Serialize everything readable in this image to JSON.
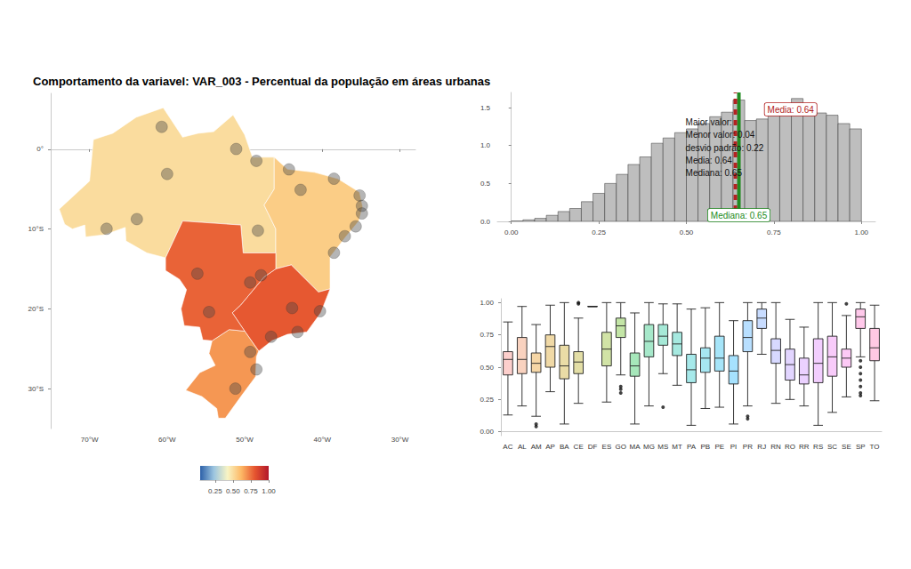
{
  "chart_data": [
    {
      "type": "map",
      "title": "Comportamento da variavel: VAR_003 - Percentual da população em áreas urbanas",
      "xlim": [
        -75,
        -28
      ],
      "xticks": [
        {
          "value": -70,
          "label": "70°W"
        },
        {
          "value": -60,
          "label": "60°W"
        },
        {
          "value": -50,
          "label": "50°W"
        },
        {
          "value": -40,
          "label": "40°W"
        },
        {
          "value": -30,
          "label": "30°W"
        }
      ],
      "ylim": [
        -35,
        7
      ],
      "yticks": [
        {
          "value": 0,
          "label": "0°"
        },
        {
          "value": -10,
          "label": "10°S"
        },
        {
          "value": -20,
          "label": "20°S"
        },
        {
          "value": -30,
          "label": "30°S"
        }
      ],
      "grid": false,
      "regions": [
        {
          "value": 0.5,
          "polygon": [
            [
              -73.9,
              -7.5
            ],
            [
              -70,
              -4
            ],
            [
              -69.5,
              1.2
            ],
            [
              -67,
              2
            ],
            [
              -64,
              4
            ],
            [
              -60.5,
              5.2
            ],
            [
              -58,
              1.5
            ],
            [
              -56,
              2
            ],
            [
              -54,
              2.2
            ],
            [
              -51.5,
              4.3
            ],
            [
              -50,
              1.8
            ],
            [
              -49,
              -1
            ],
            [
              -46.2,
              -1
            ],
            [
              -46.2,
              -5
            ],
            [
              -47.5,
              -7
            ],
            [
              -46,
              -10
            ],
            [
              -46,
              -13
            ],
            [
              -50.2,
              -13
            ],
            [
              -50.5,
              -9.5
            ],
            [
              -58,
              -9
            ],
            [
              -60.2,
              -13.6
            ],
            [
              -62.6,
              -13
            ],
            [
              -65.3,
              -11.5
            ],
            [
              -65.4,
              -9.8
            ],
            [
              -68,
              -10.7
            ],
            [
              -70.5,
              -11
            ],
            [
              -70.6,
              -9.5
            ],
            [
              -72.2,
              -10
            ],
            [
              -73.2,
              -9.4
            ]
          ]
        },
        {
          "value": 0.55,
          "polygon": [
            [
              -46.2,
              -1
            ],
            [
              -44.5,
              -2.5
            ],
            [
              -41,
              -2.9
            ],
            [
              -38,
              -3.7
            ],
            [
              -35.2,
              -5.4
            ],
            [
              -34.8,
              -7.2
            ],
            [
              -35.3,
              -9
            ],
            [
              -37,
              -11
            ],
            [
              -39,
              -13.5
            ],
            [
              -39,
              -17.5
            ],
            [
              -40.5,
              -17.9
            ],
            [
              -44,
              -14.5
            ],
            [
              -46,
              -15
            ],
            [
              -46,
              -13
            ],
            [
              -46,
              -10
            ],
            [
              -47.5,
              -7
            ],
            [
              -46.2,
              -5
            ]
          ]
        },
        {
          "value": 0.8,
          "polygon": [
            [
              -39,
              -17.5
            ],
            [
              -40.2,
              -20.5
            ],
            [
              -42,
              -22.9
            ],
            [
              -44.5,
              -23.2
            ],
            [
              -46.5,
              -24
            ],
            [
              -48.2,
              -25.3
            ],
            [
              -50,
              -22.8
            ],
            [
              -51.6,
              -20.5
            ],
            [
              -50.5,
              -19.5
            ],
            [
              -47.5,
              -16
            ],
            [
              -46,
              -15
            ],
            [
              -44,
              -14.5
            ],
            [
              -40.5,
              -17.9
            ]
          ]
        },
        {
          "value": 0.68,
          "polygon": [
            [
              -48.2,
              -25.3
            ],
            [
              -48.5,
              -26
            ],
            [
              -48.6,
              -28.5
            ],
            [
              -50.5,
              -31
            ],
            [
              -52.5,
              -33.7
            ],
            [
              -53.4,
              -33.7
            ],
            [
              -53.6,
              -32.5
            ],
            [
              -55.5,
              -31
            ],
            [
              -57.6,
              -30.2
            ],
            [
              -55.8,
              -28
            ],
            [
              -53.8,
              -27.1
            ],
            [
              -54.6,
              -25.6
            ],
            [
              -54.2,
              -24
            ],
            [
              -52,
              -22.6
            ],
            [
              -50,
              -22.8
            ]
          ]
        },
        {
          "value": 0.78,
          "polygon": [
            [
              -50.2,
              -13
            ],
            [
              -46,
              -13
            ],
            [
              -46,
              -15
            ],
            [
              -47.5,
              -16
            ],
            [
              -50.5,
              -19.5
            ],
            [
              -51.6,
              -20.5
            ],
            [
              -50,
              -22.8
            ],
            [
              -52,
              -22.6
            ],
            [
              -54.2,
              -24
            ],
            [
              -55.4,
              -23.9
            ],
            [
              -55.8,
              -22.3
            ],
            [
              -57.8,
              -22.1
            ],
            [
              -58.2,
              -20
            ],
            [
              -57.5,
              -17.6
            ],
            [
              -58.4,
              -16.3
            ],
            [
              -60.2,
              -15.2
            ],
            [
              -60.2,
              -13.6
            ],
            [
              -58,
              -9
            ],
            [
              -50.5,
              -9.5
            ]
          ]
        }
      ],
      "points": [
        [
          -67.8,
          -9.97
        ],
        [
          -63.9,
          -8.76
        ],
        [
          -60,
          -3.1
        ],
        [
          -60.7,
          2.8
        ],
        [
          -51.1,
          0.03
        ],
        [
          -48.5,
          -1.46
        ],
        [
          -48.3,
          -10.2
        ],
        [
          -44.3,
          -2.53
        ],
        [
          -42.8,
          -5.09
        ],
        [
          -38.5,
          -3.7
        ],
        [
          -35.2,
          -5.8
        ],
        [
          -34.9,
          -7.1
        ],
        [
          -34.9,
          -8.05
        ],
        [
          -35.7,
          -9.67
        ],
        [
          -37.1,
          -10.9
        ],
        [
          -38.5,
          -12.97
        ],
        [
          -47.9,
          -15.8
        ],
        [
          -49.3,
          -16.7
        ],
        [
          -56.1,
          -15.6
        ],
        [
          -54.6,
          -20.4
        ],
        [
          -43.9,
          -19.9
        ],
        [
          -40.3,
          -20.3
        ],
        [
          -43.2,
          -22.9
        ],
        [
          -46.6,
          -23.5
        ],
        [
          -49.3,
          -25.4
        ],
        [
          -48.5,
          -27.6
        ],
        [
          -51.2,
          -30
        ]
      ],
      "colorbar": {
        "range": [
          0.04,
          1.0
        ],
        "ticks": [
          0.25,
          {
            "value": 0.5,
            "label": "0.50"
          },
          0.75,
          {
            "value": 1.0,
            "label": "1.00"
          }
        ],
        "colors": [
          "#2c60a8",
          "#9cc5e0",
          "#f8f4c4",
          "#fdb865",
          "#e5542f",
          "#b2182b"
        ]
      }
    },
    {
      "type": "histogram",
      "bins": [
        0,
        0.0333,
        0.0667,
        0.1,
        0.1333,
        0.1667,
        0.2,
        0.2333,
        0.2667,
        0.3,
        0.3333,
        0.3667,
        0.4,
        0.4333,
        0.4667,
        0.5,
        0.5333,
        0.5667,
        0.6,
        0.6333,
        0.6667,
        0.7,
        0.7333,
        0.7667,
        0.8,
        0.8333,
        0.8667,
        0.9,
        0.9333,
        0.9667,
        1
      ],
      "values": [
        0.005,
        0.02,
        0.04,
        0.08,
        0.13,
        0.17,
        0.26,
        0.37,
        0.5,
        0.62,
        0.75,
        0.85,
        1.03,
        1.1,
        1.17,
        1.22,
        1.29,
        1.38,
        1.44,
        1.6,
        1.33,
        1.35,
        1.42,
        1.53,
        1.62,
        1.5,
        1.43,
        1.4,
        1.29,
        1.22
      ],
      "color": "#bebebe",
      "xlim": [
        -0.04,
        1.04
      ],
      "xticks": [
        {
          "value": 0,
          "label": "0.00"
        },
        0.25,
        {
          "value": 0.5,
          "label": "0.50"
        },
        0.75,
        {
          "value": 1,
          "label": "1.00"
        }
      ],
      "ylim": [
        0,
        1.7
      ],
      "yticks": [
        {
          "value": 0,
          "label": "0.0"
        },
        {
          "value": 0.5,
          "label": "0.5"
        },
        {
          "value": 1,
          "label": "1.0"
        },
        {
          "value": 1.5,
          "label": "1.5"
        }
      ],
      "grid": false,
      "mean": {
        "value": 0.64,
        "label": "Media: 0.64",
        "color": "#b22222"
      },
      "median": {
        "value": 0.65,
        "label": "Mediana: 0.65",
        "color": "#228b22"
      },
      "stats_text": [
        "Maior valor:",
        "Menor valor: 0.04",
        "desvio padrão: 0.22",
        "Media: 0.64",
        "Mediana: 0.65"
      ]
    },
    {
      "type": "boxplot",
      "categories": [
        "AC",
        "AL",
        "AM",
        "AP",
        "BA",
        "CE",
        "DF",
        "ES",
        "GO",
        "MA",
        "MG",
        "MS",
        "MT",
        "PA",
        "PB",
        "PE",
        "PI",
        "PR",
        "RJ",
        "RN",
        "RO",
        "RR",
        "RS",
        "SC",
        "SE",
        "SP",
        "TO"
      ],
      "values": [
        [
          0.13,
          0.44,
          0.56,
          0.62,
          0.85
        ],
        [
          0.2,
          0.45,
          0.56,
          0.73,
          0.97
        ],
        [
          0.12,
          0.46,
          0.53,
          0.61,
          0.83
        ],
        [
          0.31,
          0.5,
          0.66,
          0.75,
          0.98
        ],
        [
          0.06,
          0.41,
          0.51,
          0.67,
          1.0
        ],
        [
          0.22,
          0.45,
          0.54,
          0.62,
          0.88
        ],
        [
          0.97,
          0.97,
          0.97,
          0.97,
          0.97
        ],
        [
          0.23,
          0.51,
          0.64,
          0.77,
          1.0
        ],
        [
          0.44,
          0.73,
          0.82,
          0.88,
          1.0
        ],
        [
          0.06,
          0.43,
          0.51,
          0.61,
          0.92
        ],
        [
          0.2,
          0.58,
          0.7,
          0.83,
          1.0
        ],
        [
          0.45,
          0.67,
          0.74,
          0.83,
          0.99
        ],
        [
          0.36,
          0.59,
          0.68,
          0.77,
          0.99
        ],
        [
          0.05,
          0.38,
          0.48,
          0.6,
          0.95
        ],
        [
          0.18,
          0.46,
          0.57,
          0.65,
          0.96
        ],
        [
          0.19,
          0.47,
          0.57,
          0.74,
          1.0
        ],
        [
          0.06,
          0.37,
          0.47,
          0.59,
          0.86
        ],
        [
          0.2,
          0.62,
          0.73,
          0.86,
          1.0
        ],
        [
          0.6,
          0.8,
          0.88,
          0.95,
          1.0
        ],
        [
          0.22,
          0.53,
          0.63,
          0.72,
          1.0
        ],
        [
          0.25,
          0.4,
          0.52,
          0.64,
          0.87
        ],
        [
          0.2,
          0.37,
          0.44,
          0.57,
          0.81
        ],
        [
          0.05,
          0.38,
          0.53,
          0.72,
          1.0
        ],
        [
          0.15,
          0.43,
          0.58,
          0.74,
          1.0
        ],
        [
          0.27,
          0.5,
          0.57,
          0.64,
          0.9
        ],
        [
          0.58,
          0.8,
          0.89,
          0.95,
          1.0
        ],
        [
          0.24,
          0.55,
          0.65,
          0.8,
          0.98
        ]
      ],
      "outliers": [
        [],
        [],
        [
          0.06,
          0.04
        ],
        [],
        [],
        [
          1.0,
          0.99
        ],
        [],
        [],
        [
          0.3,
          0.33,
          0.35
        ],
        [],
        [],
        [
          0.19
        ],
        [],
        [],
        [],
        [],
        [],
        [
          0.12,
          0.1
        ],
        [],
        [],
        [],
        [],
        [],
        [],
        [
          0.99
        ],
        [
          0.55,
          0.5,
          0.45,
          0.4,
          0.35,
          0.3,
          0.28
        ],
        []
      ],
      "colors": [
        "#F8766D",
        "#EF7F49",
        "#E38900",
        "#D49200",
        "#C49A00",
        "#B0A100",
        "#99A800",
        "#7CAE00",
        "#53B400",
        "#00BA38",
        "#00BE67",
        "#00C08B",
        "#00C1A7",
        "#00BFC4",
        "#00BBDA",
        "#00B4EF",
        "#00ABFD",
        "#35A2FF",
        "#619CFF",
        "#8B93FF",
        "#AD88FF",
        "#C77CFF",
        "#DB72FB",
        "#EA6AF1",
        "#F564E3",
        "#FF61C3",
        "#FF65AE"
      ],
      "ylim": [
        -0.03,
        1.03
      ],
      "yticks": [
        {
          "value": 0,
          "label": "0.00"
        },
        0.25,
        {
          "value": 0.5,
          "label": "0.50"
        },
        0.75,
        {
          "value": 1,
          "label": "1.00"
        }
      ],
      "grid": false
    }
  ]
}
